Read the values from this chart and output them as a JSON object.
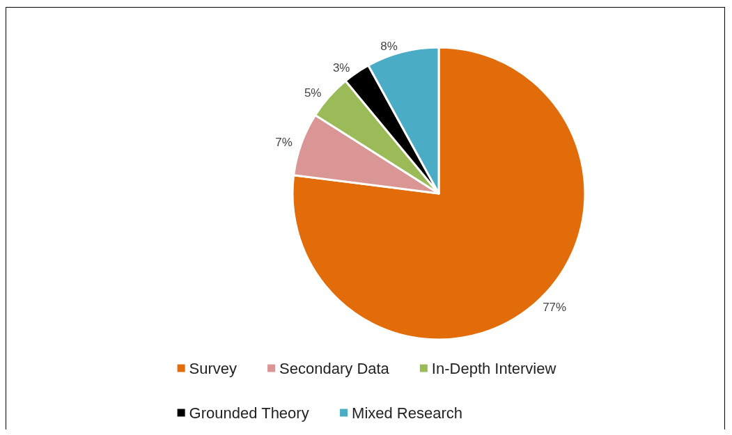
{
  "chart_data": {
    "type": "pie",
    "categories": [
      "Survey",
      "Secondary Data",
      "In-Depth Interview",
      "Grounded Theory",
      "Mixed Research"
    ],
    "values": [
      77,
      7,
      5,
      3,
      8
    ],
    "colors": [
      "#e36c0a",
      "#d99694",
      "#9bbb59",
      "#000000",
      "#4bacc6"
    ],
    "value_labels": [
      "77%",
      "7%",
      "5%",
      "3%",
      "8%"
    ],
    "legend": "bottom"
  }
}
